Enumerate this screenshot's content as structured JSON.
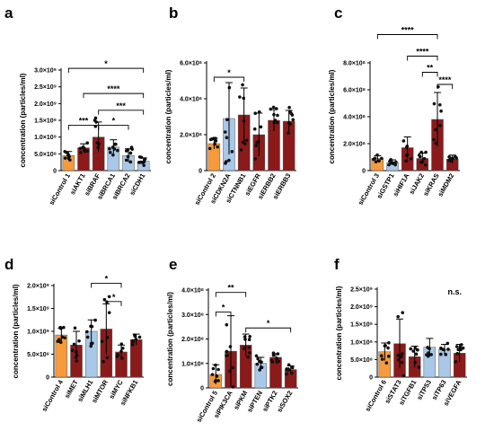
{
  "colors": {
    "orange": "#f79a3c",
    "red": "#8b1a1a",
    "blue": "#a9c8e8"
  },
  "chart_data": [
    {
      "type": "bar",
      "panel": "a",
      "ylabel": "concentration (particles/ml)",
      "ylim": [
        0,
        3.0
      ],
      "yticks": [
        "0",
        "5.0×10⁸",
        "1.0×10⁹",
        "1.5×10⁹",
        "2.0×10⁹",
        "2.5×10⁹",
        "3.0×10⁹"
      ],
      "categories": [
        "siControl 1",
        "siAKT1",
        "siBRAF",
        "siBRCA1",
        "siBRCA2",
        "siCDH1"
      ],
      "colors": [
        "orange",
        "red",
        "red",
        "blue",
        "blue",
        "blue"
      ],
      "values": [
        0.45,
        0.68,
        1.0,
        0.7,
        0.45,
        0.28
      ],
      "errors": [
        0.12,
        0.12,
        0.45,
        0.22,
        0.2,
        0.1
      ],
      "brackets": [
        {
          "from": 0,
          "to": 2,
          "y": 1.35,
          "label": "***"
        },
        {
          "from": 2,
          "to": 4,
          "y": 1.35,
          "label": "*"
        },
        {
          "from": 2,
          "to": 5,
          "y": 1.8,
          "label": "***"
        },
        {
          "from": 1,
          "to": 5,
          "y": 2.3,
          "label": "****"
        },
        {
          "from": 0,
          "to": 5,
          "y": 3.05,
          "label": "*"
        }
      ]
    },
    {
      "type": "bar",
      "panel": "b",
      "ylabel": "concentration (particles/ml)",
      "ylim": [
        0,
        6.0
      ],
      "yticks": [
        "0",
        "2.0×10⁸",
        "4.0×10⁸",
        "6.0×10⁸"
      ],
      "categories": [
        "siControl 2",
        "siCDKN2A",
        "siCTNNB1",
        "siEGFR",
        "siERBB2",
        "siERBB3"
      ],
      "colors": [
        "orange",
        "blue",
        "red",
        "red",
        "red",
        "red"
      ],
      "values": [
        1.5,
        2.9,
        3.1,
        2.0,
        2.8,
        2.75
      ],
      "errors": [
        0.3,
        2.0,
        1.5,
        1.2,
        0.6,
        0.6
      ],
      "brackets": [
        {
          "from": 0,
          "to": 2,
          "y": 5.2,
          "label": "*"
        }
      ]
    },
    {
      "type": "bar",
      "panel": "c",
      "ylabel": "concentration (particles/ml)",
      "ylim": [
        0,
        8.0
      ],
      "yticks": [
        "0",
        "2.0×10⁸",
        "4.0×10⁸",
        "6.0×10⁸",
        "8.0×10⁸"
      ],
      "categories": [
        "siControl 3",
        "siGSTP1",
        "siHIF1A",
        "siJAK2",
        "siKRAS",
        "siMDM2"
      ],
      "colors": [
        "orange",
        "blue",
        "red",
        "red",
        "red",
        "red"
      ],
      "values": [
        0.9,
        0.6,
        1.7,
        0.9,
        3.8,
        0.85
      ],
      "errors": [
        0.2,
        0.2,
        0.8,
        0.4,
        2.0,
        0.3
      ],
      "brackets": [
        {
          "from": 4,
          "to": 5,
          "y": 6.4,
          "label": "****"
        },
        {
          "from": 3,
          "to": 4,
          "y": 7.3,
          "label": "**"
        },
        {
          "from": 2,
          "to": 4,
          "y": 8.5,
          "label": "****"
        },
        {
          "from": 0,
          "to": 4,
          "y": 10.1,
          "label": "****"
        }
      ]
    },
    {
      "type": "bar",
      "panel": "d",
      "ylabel": "concentration (particles/ml)",
      "ylim": [
        0,
        2.0
      ],
      "yticks": [
        "0",
        "5.0×10⁸",
        "1.0×10⁹",
        "1.5×10⁹",
        "2.0×10⁹"
      ],
      "categories": [
        "siControl 4",
        "siMET",
        "siMLH1",
        "siMTOR",
        "siMYC",
        "siNFKB1"
      ],
      "colors": [
        "orange",
        "red",
        "blue",
        "red",
        "red",
        "red"
      ],
      "values": [
        0.92,
        0.7,
        1.0,
        1.05,
        0.55,
        0.82
      ],
      "errors": [
        0.15,
        0.3,
        0.25,
        0.55,
        0.15,
        0.12
      ],
      "brackets": [
        {
          "from": 3,
          "to": 4,
          "y": 1.65,
          "label": "*"
        },
        {
          "from": 2,
          "to": 4,
          "y": 2.05,
          "label": "*"
        }
      ]
    },
    {
      "type": "bar",
      "panel": "e",
      "ylabel": "concentration (particles/ml)",
      "ylim": [
        0,
        4.0
      ],
      "yticks": [
        "0",
        "1.0×10⁸",
        "2.0×10⁸",
        "3.0×10⁸",
        "4.0×10⁸"
      ],
      "categories": [
        "siControl 5",
        "siPIK3CA",
        "siPKM",
        "siPTEN",
        "siPTK2",
        "siSOX2"
      ],
      "colors": [
        "orange",
        "red",
        "red",
        "blue",
        "red",
        "red"
      ],
      "values": [
        0.55,
        1.5,
        1.75,
        1.0,
        1.25,
        0.75
      ],
      "errors": [
        0.4,
        1.45,
        0.45,
        0.25,
        0.15,
        0.15
      ],
      "brackets": [
        {
          "from": 0,
          "to": 1,
          "y": 3.1,
          "label": "*"
        },
        {
          "from": 2,
          "to": 5,
          "y": 2.45,
          "label": "*"
        },
        {
          "from": 0,
          "to": 2,
          "y": 3.9,
          "label": "**"
        }
      ]
    },
    {
      "type": "bar",
      "panel": "f",
      "ylabel": "concentration (particles/ml)",
      "ylim": [
        0,
        2.5
      ],
      "yticks": [
        "0",
        "5.0×10⁸",
        "1.0×10⁹",
        "1.5×10⁹",
        "2.0×10⁹",
        "2.5×10⁹"
      ],
      "categories": [
        "siControl 6",
        "siSTAT3",
        "siTGFB1",
        "siTP53",
        "siTP63",
        "siVEGFA"
      ],
      "colors": [
        "orange",
        "red",
        "red",
        "blue",
        "blue",
        "red"
      ],
      "values": [
        0.72,
        0.95,
        0.58,
        0.85,
        0.78,
        0.68
      ],
      "errors": [
        0.25,
        0.7,
        0.3,
        0.25,
        0.15,
        0.25
      ],
      "brackets": [],
      "annotation": "n.s."
    }
  ]
}
